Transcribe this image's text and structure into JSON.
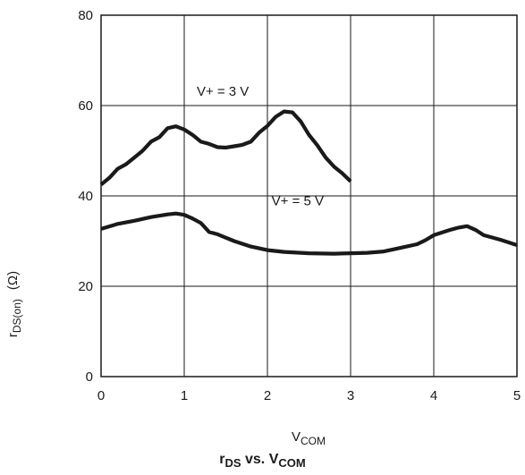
{
  "chart_data": {
    "type": "line",
    "title_parts": {
      "a": "r",
      "a_sub": "DS",
      "mid": " vs. V",
      "b_sub": "COM"
    },
    "xlabel_parts": {
      "main": "V",
      "sub": "COM"
    },
    "ylabel_parts": {
      "main": "r",
      "sub": "DS(on)",
      "unit": "(Ω)"
    },
    "xlim": [
      0,
      5
    ],
    "ylim": [
      0,
      80
    ],
    "xticks": [
      "0",
      "1",
      "2",
      "3",
      "4",
      "5"
    ],
    "yticks": [
      "0",
      "20",
      "40",
      "60",
      "80"
    ],
    "grid": true,
    "series": [
      {
        "name": "V+ = 3 V",
        "x": [
          0,
          0.1,
          0.2,
          0.3,
          0.4,
          0.5,
          0.6,
          0.7,
          0.8,
          0.9,
          1.0,
          1.1,
          1.2,
          1.3,
          1.4,
          1.5,
          1.6,
          1.7,
          1.8,
          1.9,
          2.0,
          2.1,
          2.2,
          2.3,
          2.4,
          2.5,
          2.6,
          2.7,
          2.8,
          2.9,
          3.0
        ],
        "y": [
          42.5,
          44,
          46,
          47,
          48.5,
          50,
          52,
          53,
          55,
          55.4,
          54.7,
          53.5,
          52,
          51.5,
          50.8,
          50.7,
          51,
          51.3,
          52,
          54,
          55.5,
          57.5,
          58.7,
          58.5,
          56.5,
          53.5,
          51.2,
          48.5,
          46.5,
          45,
          43.2
        ]
      },
      {
        "name": "V+ = 5 V",
        "x": [
          0,
          0.2,
          0.4,
          0.6,
          0.8,
          0.9,
          1.0,
          1.1,
          1.2,
          1.3,
          1.4,
          1.6,
          1.8,
          2.0,
          2.2,
          2.5,
          2.8,
          3.0,
          3.2,
          3.4,
          3.6,
          3.8,
          3.9,
          4.0,
          4.2,
          4.3,
          4.4,
          4.5,
          4.6,
          4.8,
          5.0
        ],
        "y": [
          32.7,
          33.8,
          34.5,
          35.3,
          35.9,
          36.1,
          35.8,
          35,
          34,
          32,
          31.5,
          30,
          28.8,
          28,
          27.6,
          27.3,
          27.2,
          27.3,
          27.4,
          27.7,
          28.5,
          29.3,
          30.2,
          31.3,
          32.5,
          33,
          33.3,
          32.5,
          31.3,
          30.3,
          29.1
        ]
      }
    ],
    "annotations": [
      {
        "text": "V+ = 3 V",
        "x": 1.15,
        "y": 62.2
      },
      {
        "text": "V+ = 5 V",
        "x": 2.05,
        "y": 37.9
      }
    ]
  }
}
